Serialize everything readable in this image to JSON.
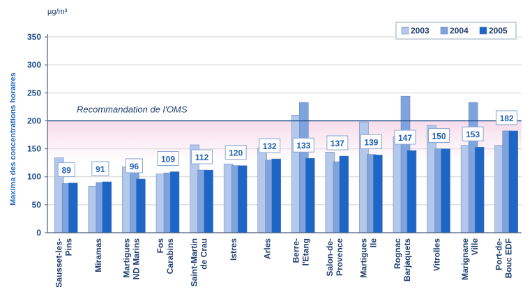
{
  "chart_data": {
    "type": "bar",
    "title": "",
    "ylabel": "Maxima des concentrations horaires",
    "unit": "µg/m³",
    "ylim": [
      0,
      350
    ],
    "yticks": [
      0,
      50,
      100,
      150,
      200,
      250,
      300,
      350
    ],
    "grid": true,
    "legend": "top-right",
    "categories": [
      [
        "Sausset-les-",
        "Pins"
      ],
      [
        "Miramas"
      ],
      [
        "Martigues",
        "ND Marins"
      ],
      [
        "Fos",
        "Carabins"
      ],
      [
        "Saint-Martin",
        "de Crau"
      ],
      [
        "Istres"
      ],
      [
        "Arles"
      ],
      [
        "Berre-",
        "l'Etang"
      ],
      [
        "Salon-de-",
        "Provence"
      ],
      [
        "Martigues",
        "Ile"
      ],
      [
        "Rognac",
        "Barjaquets"
      ],
      [
        "Vitrolles"
      ],
      [
        "Marignane",
        "Ville"
      ],
      [
        "Port-de-",
        "Bouc EDF"
      ]
    ],
    "series": [
      {
        "name": "2003",
        "color": "#b4c8ec",
        "values": [
          134,
          83,
          118,
          105,
          157,
          123,
          152,
          210,
          144,
          198,
          172,
          192,
          156,
          156
        ]
      },
      {
        "name": "2004",
        "color": "#7fa3dc",
        "values": [
          88,
          90,
          122,
          107,
          112,
          120,
          130,
          233,
          127,
          140,
          244,
          150,
          233,
          182
        ]
      },
      {
        "name": "2005",
        "color": "#1e66c6",
        "values": [
          89,
          91,
          96,
          109,
          112,
          120,
          132,
          133,
          137,
          139,
          147,
          150,
          153,
          182
        ]
      }
    ],
    "data_labels": [
      "89",
      "91",
      "96",
      "109",
      "112",
      "120",
      "132",
      "133",
      "137",
      "139",
      "147",
      "150",
      "153",
      "182"
    ],
    "reference_line": {
      "value": 200,
      "label": "Recommandation de l'OMS",
      "color": "#1f4e8a"
    }
  }
}
